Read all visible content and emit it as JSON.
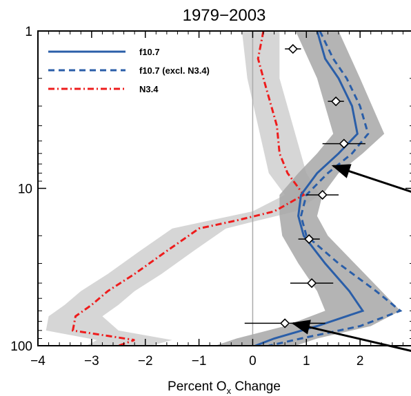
{
  "chart_data": {
    "type": "line",
    "title": "1979−2003",
    "xlabel": "Percent O",
    "xlabel_subscript": "x",
    "xlabel_suffix": " Change",
    "ylabel": "",
    "xlim": [
      -4,
      3
    ],
    "ylim": [
      1,
      100
    ],
    "y_scale": "log",
    "y_inverted": true,
    "x_ticks": [
      -4,
      -3,
      -2,
      -1,
      0,
      1,
      2
    ],
    "x_tick_labels": [
      "−4",
      "−3",
      "−2",
      "−1",
      "0",
      "1",
      "2"
    ],
    "y_ticks": [
      1,
      10,
      100
    ],
    "y_tick_labels": [
      "1",
      "10",
      "100"
    ],
    "legend_position": "top-left",
    "colors": {
      "f107": "#2a5ea8",
      "n34": "#ee1c1c",
      "band_light": "#d6d6d6",
      "band_dark": "#a7a7a7",
      "zero_line": "#aaaaaa",
      "arrow": "#000000"
    },
    "series": [
      {
        "name": "f10.7",
        "style": "solid",
        "points": [
          {
            "y": 1,
            "x": 1.2
          },
          {
            "y": 1.5,
            "x": 1.35
          },
          {
            "y": 2,
            "x": 1.6
          },
          {
            "y": 3,
            "x": 1.85
          },
          {
            "y": 4.5,
            "x": 1.95
          },
          {
            "y": 6,
            "x": 1.6
          },
          {
            "y": 8,
            "x": 1.2
          },
          {
            "y": 11,
            "x": 0.9
          },
          {
            "y": 15,
            "x": 0.85
          },
          {
            "y": 20,
            "x": 0.95
          },
          {
            "y": 30,
            "x": 1.35
          },
          {
            "y": 45,
            "x": 1.8
          },
          {
            "y": 60,
            "x": 2.05
          },
          {
            "y": 75,
            "x": 1.2
          },
          {
            "y": 90,
            "x": 0.4
          },
          {
            "y": 100,
            "x": 0.05
          }
        ],
        "band": [
          {
            "y": 1,
            "lo": 0.8,
            "hi": 1.6
          },
          {
            "y": 2,
            "lo": 1.2,
            "hi": 2.0
          },
          {
            "y": 4.5,
            "lo": 1.5,
            "hi": 2.45
          },
          {
            "y": 6,
            "lo": 1.2,
            "hi": 2.05
          },
          {
            "y": 8,
            "lo": 0.85,
            "hi": 1.6
          },
          {
            "y": 11,
            "lo": 0.5,
            "hi": 1.3
          },
          {
            "y": 15,
            "lo": 0.5,
            "hi": 1.2
          },
          {
            "y": 20,
            "lo": 0.55,
            "hi": 1.4
          },
          {
            "y": 30,
            "lo": 0.85,
            "hi": 1.9
          },
          {
            "y": 45,
            "lo": 1.2,
            "hi": 2.4
          },
          {
            "y": 60,
            "lo": 1.35,
            "hi": 2.75
          },
          {
            "y": 75,
            "lo": 0.6,
            "hi": 2.2
          },
          {
            "y": 90,
            "lo": -0.3,
            "hi": 1.2
          },
          {
            "y": 100,
            "lo": -0.7,
            "hi": 0.8
          }
        ]
      },
      {
        "name": "f10.7 (excl. N3.4)",
        "style": "dashed",
        "points": [
          {
            "y": 1,
            "x": 1.25
          },
          {
            "y": 1.5,
            "x": 1.5
          },
          {
            "y": 2,
            "x": 1.75
          },
          {
            "y": 3,
            "x": 2.0
          },
          {
            "y": 4.5,
            "x": 2.15
          },
          {
            "y": 6,
            "x": 1.85
          },
          {
            "y": 8,
            "x": 1.4
          },
          {
            "y": 11,
            "x": 1.0
          },
          {
            "y": 15,
            "x": 0.9
          },
          {
            "y": 20,
            "x": 1.0
          },
          {
            "y": 30,
            "x": 1.6
          },
          {
            "y": 45,
            "x": 2.3
          },
          {
            "y": 60,
            "x": 2.75
          },
          {
            "y": 75,
            "x": 2.0
          },
          {
            "y": 90,
            "x": 0.9
          },
          {
            "y": 100,
            "x": 0.3
          }
        ]
      },
      {
        "name": "N3.4",
        "style": "dashdot",
        "points": [
          {
            "y": 1,
            "x": 0.2
          },
          {
            "y": 1.5,
            "x": 0.1
          },
          {
            "y": 2,
            "x": 0.2
          },
          {
            "y": 4,
            "x": 0.45
          },
          {
            "y": 6,
            "x": 0.5
          },
          {
            "y": 8,
            "x": 0.65
          },
          {
            "y": 11,
            "x": 0.95
          },
          {
            "y": 14,
            "x": 0.4
          },
          {
            "y": 16,
            "x": -0.3
          },
          {
            "y": 18,
            "x": -1.0
          },
          {
            "y": 25,
            "x": -1.6
          },
          {
            "y": 35,
            "x": -2.2
          },
          {
            "y": 45,
            "x": -2.7
          },
          {
            "y": 55,
            "x": -3.0
          },
          {
            "y": 65,
            "x": -3.3
          },
          {
            "y": 80,
            "x": -3.35
          },
          {
            "y": 92,
            "x": -2.2
          },
          {
            "y": 100,
            "x": -2.5
          }
        ],
        "band": [
          {
            "y": 1,
            "lo": -0.2,
            "hi": 0.5
          },
          {
            "y": 2,
            "lo": -0.1,
            "hi": 0.5
          },
          {
            "y": 4,
            "lo": 0.1,
            "hi": 0.75
          },
          {
            "y": 8,
            "lo": 0.3,
            "hi": 1.0
          },
          {
            "y": 11,
            "lo": 0.6,
            "hi": 1.25
          },
          {
            "y": 14,
            "lo": 0.0,
            "hi": 0.8
          },
          {
            "y": 16,
            "lo": -0.8,
            "hi": 0.1
          },
          {
            "y": 18,
            "lo": -1.5,
            "hi": -0.5
          },
          {
            "y": 25,
            "lo": -2.1,
            "hi": -1.1
          },
          {
            "y": 35,
            "lo": -2.7,
            "hi": -1.7
          },
          {
            "y": 45,
            "lo": -3.2,
            "hi": -2.2
          },
          {
            "y": 55,
            "lo": -3.5,
            "hi": -2.5
          },
          {
            "y": 65,
            "lo": -3.8,
            "hi": -2.8
          },
          {
            "y": 80,
            "lo": -3.85,
            "hi": -2.5
          },
          {
            "y": 92,
            "lo": -2.9,
            "hi": -1.5
          },
          {
            "y": 100,
            "lo": -3.1,
            "hi": -1.9
          }
        ]
      }
    ],
    "observations": [
      {
        "y": 1.3,
        "x": 0.75,
        "xerr": 0.15
      },
      {
        "y": 2.8,
        "x": 1.55,
        "xerr": 0.15
      },
      {
        "y": 5.2,
        "x": 1.7,
        "xerr": 0.4
      },
      {
        "y": 11,
        "x": 1.3,
        "xerr": 0.3
      },
      {
        "y": 21,
        "x": 1.05,
        "xerr": 0.2
      },
      {
        "y": 40,
        "x": 1.1,
        "xerr": 0.4
      },
      {
        "y": 72,
        "x": 0.6,
        "xerr": 0.75
      }
    ],
    "annotations": [
      {
        "type": "arrow",
        "from": {
          "x": 3.3,
          "y": 11.5
        },
        "to": {
          "x": 1.5,
          "y": 7.2
        }
      },
      {
        "type": "arrow",
        "from": {
          "x": 3.3,
          "y": 115
        },
        "to": {
          "x": 0.75,
          "y": 72
        }
      }
    ]
  }
}
